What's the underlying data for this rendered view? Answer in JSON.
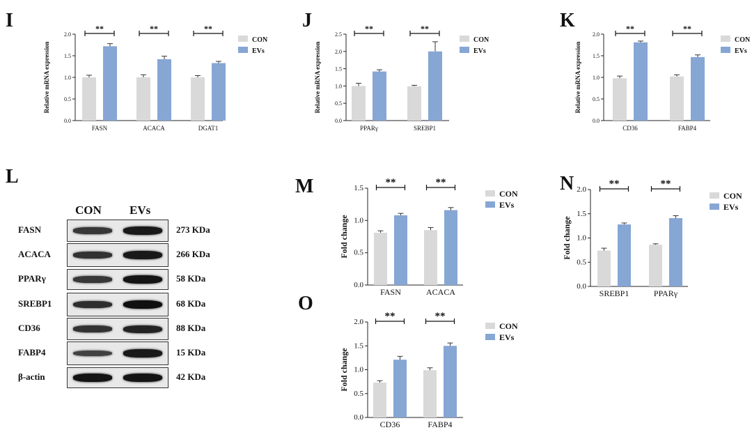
{
  "colors": {
    "con": "#d9d9d9",
    "evs": "#86a6d4",
    "axis": "#222222"
  },
  "panels": [
    "I",
    "J",
    "K",
    "L",
    "M",
    "N",
    "O"
  ],
  "legend": {
    "con": "CON",
    "evs": "EVs"
  },
  "sig_label": "**",
  "chart_data": [
    {
      "panel": "I",
      "type": "bar",
      "ylabel": "Relative mRNA expression",
      "ylim": [
        0,
        2.0
      ],
      "yticks": [
        "0.0",
        "0.5",
        "1.0",
        "1.5",
        "2.0"
      ],
      "ytick_values": [
        0,
        0.5,
        1.0,
        1.5,
        2.0
      ],
      "categories": [
        "FASN",
        "ACACA",
        "DGAT1"
      ],
      "series": [
        {
          "name": "CON",
          "values": [
            1.0,
            1.0,
            1.0
          ],
          "err": [
            0.05,
            0.06,
            0.04
          ]
        },
        {
          "name": "EVs",
          "values": [
            1.72,
            1.42,
            1.33
          ],
          "err": [
            0.06,
            0.07,
            0.04
          ]
        }
      ],
      "significance": [
        "**",
        "**",
        "**"
      ]
    },
    {
      "panel": "J",
      "type": "bar",
      "ylabel": "Relative mRNA expression",
      "ylim": [
        0,
        2.5
      ],
      "yticks": [
        "0.0",
        "0.5",
        "1.0",
        "1.5",
        "2.0",
        "2.5"
      ],
      "ytick_values": [
        0,
        0.5,
        1.0,
        1.5,
        2.0,
        2.5
      ],
      "categories": [
        "PPARγ",
        "SREBP1"
      ],
      "series": [
        {
          "name": "CON",
          "values": [
            1.0,
            0.99
          ],
          "err": [
            0.08,
            0.03
          ]
        },
        {
          "name": "EVs",
          "values": [
            1.42,
            2.0
          ],
          "err": [
            0.05,
            0.28
          ]
        }
      ],
      "significance": [
        "**",
        "**"
      ]
    },
    {
      "panel": "K",
      "type": "bar",
      "ylabel": "Relative mRNA expression",
      "ylim": [
        0,
        2.0
      ],
      "yticks": [
        "0.0",
        "0.5",
        "1.0",
        "1.5",
        "2.0"
      ],
      "ytick_values": [
        0,
        0.5,
        1.0,
        1.5,
        2.0
      ],
      "categories": [
        "CD36",
        "FABP4"
      ],
      "series": [
        {
          "name": "CON",
          "values": [
            0.98,
            1.02
          ],
          "err": [
            0.05,
            0.04
          ]
        },
        {
          "name": "EVs",
          "values": [
            1.81,
            1.47
          ],
          "err": [
            0.03,
            0.05
          ]
        }
      ],
      "significance": [
        "**",
        "**"
      ]
    },
    {
      "panel": "M",
      "type": "bar",
      "ylabel": "Fold change",
      "ylim": [
        0,
        1.5
      ],
      "yticks": [
        "0.0",
        "0.5",
        "1.0",
        "1.5"
      ],
      "ytick_values": [
        0,
        0.5,
        1.0,
        1.5
      ],
      "categories": [
        "FASN",
        "ACACA"
      ],
      "series": [
        {
          "name": "CON",
          "values": [
            0.81,
            0.85
          ],
          "err": [
            0.03,
            0.04
          ]
        },
        {
          "name": "EVs",
          "values": [
            1.08,
            1.16
          ],
          "err": [
            0.03,
            0.04
          ]
        }
      ],
      "significance": [
        "**",
        "**"
      ]
    },
    {
      "panel": "N",
      "type": "bar",
      "ylabel": "Fold change",
      "ylim": [
        0,
        2.0
      ],
      "yticks": [
        "0.0",
        "0.5",
        "1.0",
        "1.5",
        "2.0"
      ],
      "ytick_values": [
        0,
        0.5,
        1.0,
        1.5,
        2.0
      ],
      "categories": [
        "SREBP1",
        "PPARγ"
      ],
      "series": [
        {
          "name": "CON",
          "values": [
            0.74,
            0.86
          ],
          "err": [
            0.05,
            0.02
          ]
        },
        {
          "name": "EVs",
          "values": [
            1.28,
            1.41
          ],
          "err": [
            0.03,
            0.05
          ]
        }
      ],
      "significance": [
        "**",
        "**"
      ]
    },
    {
      "panel": "O",
      "type": "bar",
      "ylabel": "Fold change",
      "ylim": [
        0,
        2.0
      ],
      "yticks": [
        "0.0",
        "0.5",
        "1.0",
        "1.5",
        "2.0"
      ],
      "ytick_values": [
        0,
        0.5,
        1.0,
        1.5,
        2.0
      ],
      "categories": [
        "CD36",
        "FABP4"
      ],
      "series": [
        {
          "name": "CON",
          "values": [
            0.73,
            0.99
          ],
          "err": [
            0.04,
            0.05
          ]
        },
        {
          "name": "EVs",
          "values": [
            1.21,
            1.5
          ],
          "err": [
            0.07,
            0.06
          ]
        }
      ],
      "significance": [
        "**",
        "**"
      ]
    }
  ],
  "western_blot": {
    "header": [
      "CON",
      "EVs"
    ],
    "rows": [
      {
        "protein": "FASN",
        "size": "273 KDa",
        "con": 0.55,
        "evs": 0.85
      },
      {
        "protein": "ACACA",
        "size": "266 KDa",
        "con": 0.6,
        "evs": 0.85
      },
      {
        "protein": "PPARγ",
        "size": "58 KDa",
        "con": 0.55,
        "evs": 0.9
      },
      {
        "protein": "SREBP1",
        "size": "68 KDa",
        "con": 0.65,
        "evs": 0.95
      },
      {
        "protein": "CD36",
        "size": "88 KDa",
        "con": 0.6,
        "evs": 0.75
      },
      {
        "protein": "FABP4",
        "size": "15 KDa",
        "con": 0.45,
        "evs": 0.85
      },
      {
        "protein": "β-actin",
        "size": "42 KDa",
        "con": 0.9,
        "evs": 0.9
      }
    ]
  }
}
